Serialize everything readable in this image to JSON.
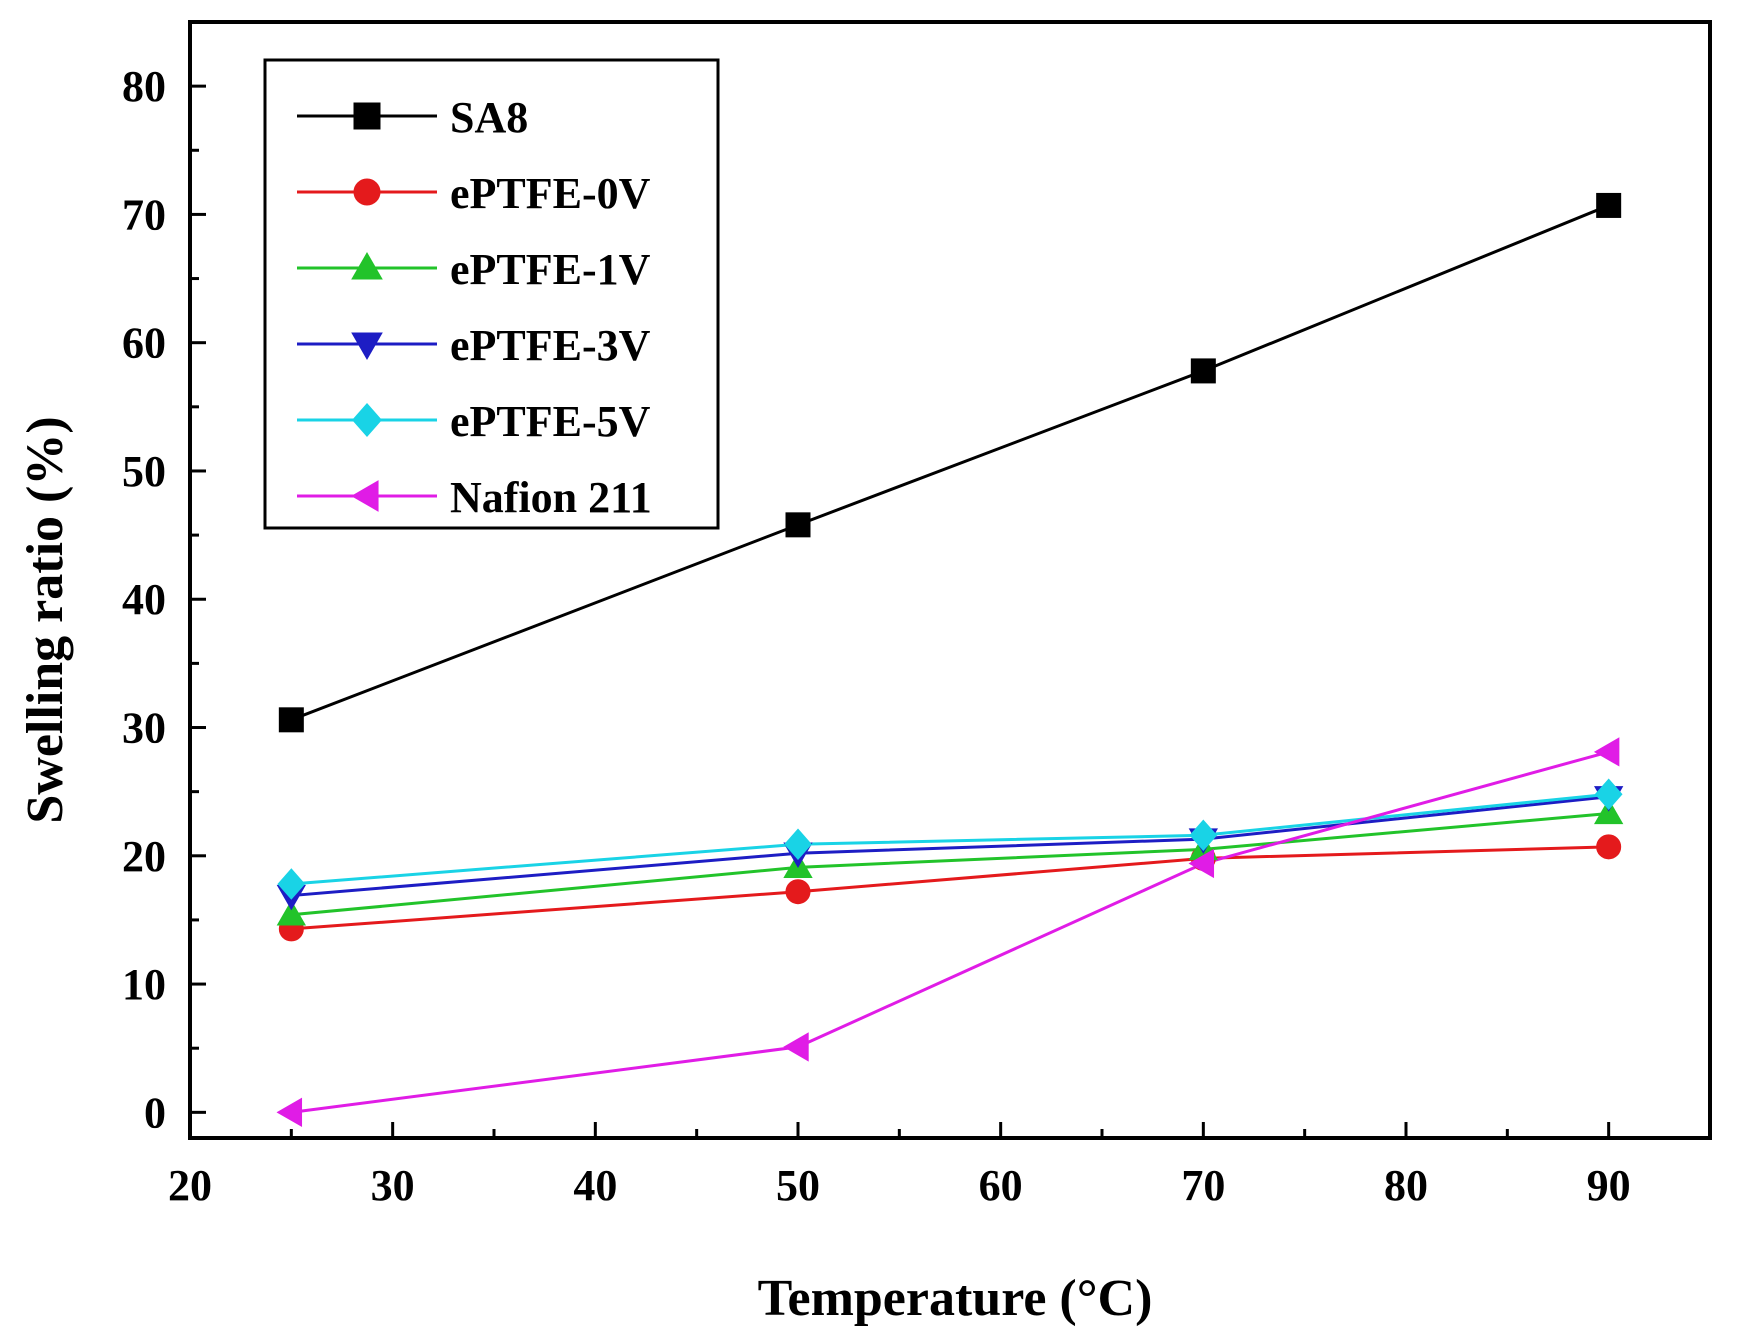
{
  "chart_data": {
    "type": "line",
    "title": "",
    "xlabel": "Temperature (°C)",
    "ylabel": "Swelling ratio (%)",
    "xlim": [
      20,
      95
    ],
    "ylim": [
      -2,
      85
    ],
    "x_ticks": [
      20,
      30,
      40,
      50,
      60,
      70,
      80,
      90
    ],
    "y_ticks": [
      0,
      10,
      20,
      30,
      40,
      50,
      60,
      70,
      80
    ],
    "legend_position": "top-left",
    "grid": false,
    "series": [
      {
        "name": "SA8",
        "color": "#000000",
        "marker": "square",
        "x": [
          25,
          50,
          70,
          90
        ],
        "values": [
          30.6,
          45.8,
          57.8,
          70.7
        ]
      },
      {
        "name": "ePTFE-0V",
        "color": "#e41a1c",
        "marker": "circle",
        "x": [
          25,
          50,
          70,
          90
        ],
        "values": [
          14.3,
          17.2,
          19.8,
          20.7
        ]
      },
      {
        "name": "ePTFE-1V",
        "color": "#22c32a",
        "marker": "triangle-up",
        "x": [
          25,
          50,
          70,
          90
        ],
        "values": [
          15.4,
          19.1,
          20.5,
          23.3
        ]
      },
      {
        "name": "ePTFE-3V",
        "color": "#1d1dc4",
        "marker": "triangle-down",
        "x": [
          25,
          50,
          70,
          90
        ],
        "values": [
          16.9,
          20.2,
          21.3,
          24.6
        ]
      },
      {
        "name": "ePTFE-5V",
        "color": "#19d3e6",
        "marker": "diamond",
        "x": [
          25,
          50,
          70,
          90
        ],
        "values": [
          17.8,
          20.9,
          21.6,
          24.8
        ]
      },
      {
        "name": "Nafion 211",
        "color": "#e01ce6",
        "marker": "triangle-left",
        "x": [
          25,
          50,
          70,
          90
        ],
        "values": [
          0.0,
          5.1,
          19.4,
          28.1
        ]
      }
    ]
  }
}
